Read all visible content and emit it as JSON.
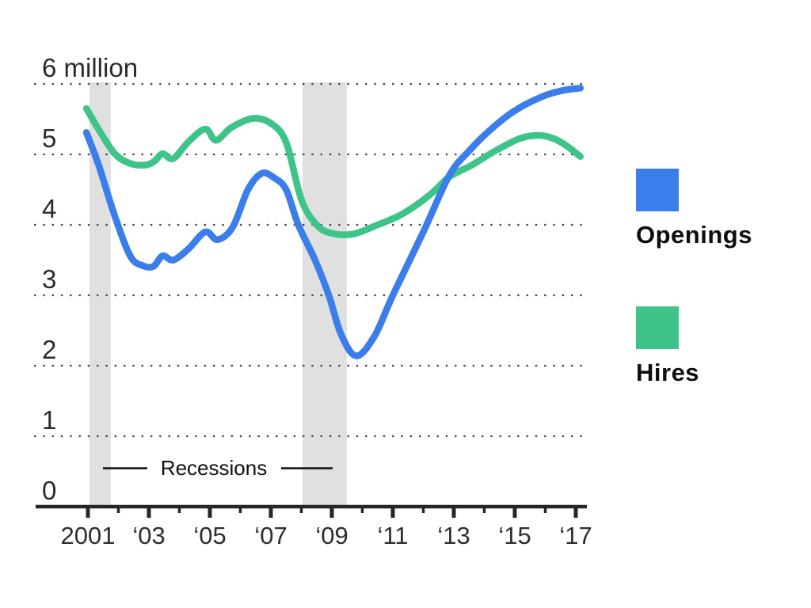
{
  "chart_data": {
    "type": "line",
    "title": "",
    "unit_note": "6 million",
    "y_axis": {
      "range": [
        0,
        6
      ],
      "grid": true,
      "labels": [
        {
          "value": 6,
          "label": "6 million"
        },
        {
          "value": 5,
          "label": "5"
        },
        {
          "value": 4,
          "label": "4"
        },
        {
          "value": 3,
          "label": "3"
        },
        {
          "value": 2,
          "label": "2"
        },
        {
          "value": 1,
          "label": "1"
        },
        {
          "value": 0,
          "label": "0"
        }
      ]
    },
    "x_axis": {
      "range": [
        2001,
        2017
      ],
      "ticks": [
        {
          "year": 2001,
          "major": true,
          "label": "2001"
        },
        {
          "year": 2002,
          "major": false,
          "label": ""
        },
        {
          "year": 2003,
          "major": true,
          "label": "‘03"
        },
        {
          "year": 2004,
          "major": false,
          "label": ""
        },
        {
          "year": 2005,
          "major": true,
          "label": "‘05"
        },
        {
          "year": 2006,
          "major": false,
          "label": ""
        },
        {
          "year": 2007,
          "major": true,
          "label": "‘07"
        },
        {
          "year": 2008,
          "major": false,
          "label": ""
        },
        {
          "year": 2009,
          "major": true,
          "label": "‘09"
        },
        {
          "year": 2010,
          "major": false,
          "label": ""
        },
        {
          "year": 2011,
          "major": true,
          "label": "‘11"
        },
        {
          "year": 2012,
          "major": false,
          "label": ""
        },
        {
          "year": 2013,
          "major": true,
          "label": "‘13"
        },
        {
          "year": 2014,
          "major": false,
          "label": ""
        },
        {
          "year": 2015,
          "major": true,
          "label": "‘15"
        },
        {
          "year": 2016,
          "major": false,
          "label": ""
        },
        {
          "year": 2017,
          "major": true,
          "label": "‘17"
        }
      ]
    },
    "recessions": {
      "label": "Recessions",
      "bands": [
        {
          "from": 2001.05,
          "to": 2001.75
        },
        {
          "from": 2008.04,
          "to": 2009.49
        }
      ],
      "band_color": "#e0e0e0"
    },
    "series": [
      {
        "name": "Hires",
        "color": "#3ec489",
        "points": [
          [
            2000.95,
            5.65
          ],
          [
            2001.4,
            5.32
          ],
          [
            2001.9,
            5.0
          ],
          [
            2002.4,
            4.87
          ],
          [
            2002.9,
            4.85
          ],
          [
            2003.2,
            4.91
          ],
          [
            2003.45,
            5.01
          ],
          [
            2003.8,
            4.94
          ],
          [
            2004.3,
            5.18
          ],
          [
            2004.85,
            5.36
          ],
          [
            2005.2,
            5.2
          ],
          [
            2005.7,
            5.38
          ],
          [
            2006.4,
            5.51
          ],
          [
            2007.0,
            5.44
          ],
          [
            2007.5,
            5.17
          ],
          [
            2008.0,
            4.36
          ],
          [
            2008.5,
            4.0
          ],
          [
            2009.0,
            3.88
          ],
          [
            2009.7,
            3.87
          ],
          [
            2010.5,
            4.0
          ],
          [
            2011.3,
            4.15
          ],
          [
            2012.2,
            4.42
          ],
          [
            2012.85,
            4.68
          ],
          [
            2013.6,
            4.85
          ],
          [
            2014.4,
            5.06
          ],
          [
            2015.2,
            5.23
          ],
          [
            2015.8,
            5.27
          ],
          [
            2016.3,
            5.22
          ],
          [
            2016.7,
            5.12
          ],
          [
            2017.15,
            4.97
          ]
        ]
      },
      {
        "name": "Openings",
        "color": "#3a7deb",
        "points": [
          [
            2000.95,
            5.31
          ],
          [
            2001.35,
            4.85
          ],
          [
            2001.9,
            4.1
          ],
          [
            2002.4,
            3.55
          ],
          [
            2002.8,
            3.42
          ],
          [
            2003.15,
            3.41
          ],
          [
            2003.45,
            3.56
          ],
          [
            2003.8,
            3.5
          ],
          [
            2004.3,
            3.66
          ],
          [
            2004.85,
            3.9
          ],
          [
            2005.25,
            3.79
          ],
          [
            2005.75,
            3.97
          ],
          [
            2006.25,
            4.5
          ],
          [
            2006.7,
            4.73
          ],
          [
            2007.1,
            4.67
          ],
          [
            2007.5,
            4.5
          ],
          [
            2007.9,
            4.0
          ],
          [
            2008.45,
            3.5
          ],
          [
            2008.9,
            3.0
          ],
          [
            2009.3,
            2.45
          ],
          [
            2009.8,
            2.14
          ],
          [
            2010.4,
            2.42
          ],
          [
            2011.0,
            3.0
          ],
          [
            2012.0,
            3.9
          ],
          [
            2012.85,
            4.7
          ],
          [
            2013.5,
            5.05
          ],
          [
            2014.2,
            5.35
          ],
          [
            2015.0,
            5.62
          ],
          [
            2015.9,
            5.82
          ],
          [
            2016.6,
            5.91
          ],
          [
            2017.15,
            5.94
          ]
        ]
      }
    ],
    "legend": [
      {
        "label": "Openings",
        "color": "#3a7deb"
      },
      {
        "label": "Hires",
        "color": "#3ec489"
      }
    ],
    "style": {
      "axis_color": "#262626",
      "grid_dot_color": "#454545",
      "line_width": 8.5
    }
  }
}
